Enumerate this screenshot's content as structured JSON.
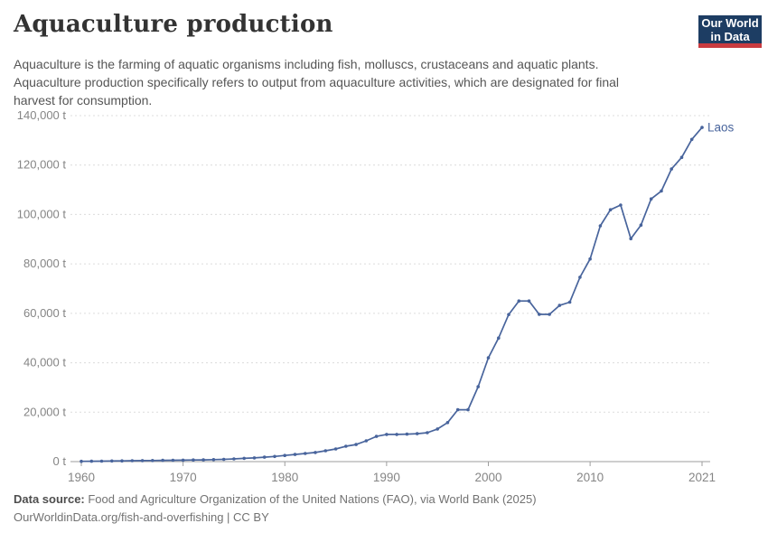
{
  "header": {
    "title": "Aquaculture production",
    "subtitle_lines": [
      "Aquaculture is the farming of aquatic organisms including fish, molluscs, crustaceans and aquatic plants.",
      "Aquaculture production specifically refers to output from aquaculture activities, which are designated for final",
      "harvest for consumption."
    ],
    "logo": {
      "line1": "Our World",
      "line2": "in Data",
      "bg_color": "#1d3d63",
      "accent_color": "#c93b40"
    }
  },
  "chart_data": {
    "type": "line",
    "title": "Aquaculture production",
    "unit": "t",
    "entity_label": "Laos",
    "x": [
      1960,
      1961,
      1962,
      1963,
      1964,
      1965,
      1966,
      1967,
      1968,
      1969,
      1970,
      1971,
      1972,
      1973,
      1974,
      1975,
      1976,
      1977,
      1978,
      1979,
      1980,
      1981,
      1982,
      1983,
      1984,
      1985,
      1986,
      1987,
      1988,
      1989,
      1990,
      1991,
      1992,
      1993,
      1994,
      1995,
      1996,
      1997,
      1998,
      1999,
      2000,
      2001,
      2002,
      2003,
      2004,
      2005,
      2006,
      2007,
      2008,
      2009,
      2010,
      2011,
      2012,
      2013,
      2014,
      2015,
      2016,
      2017,
      2018,
      2019,
      2020,
      2021
    ],
    "series": [
      {
        "name": "Laos",
        "color": "#48649c",
        "values": [
          100,
          150,
          200,
          250,
          300,
          350,
          400,
          450,
          500,
          550,
          600,
          650,
          700,
          800,
          900,
          1100,
          1300,
          1500,
          1800,
          2100,
          2500,
          2900,
          3300,
          3700,
          4400,
          5100,
          6200,
          6900,
          8400,
          10200,
          11000,
          11000,
          11100,
          11300,
          11700,
          13200,
          15800,
          21000,
          21000,
          30300,
          42000,
          50000,
          59500,
          65000,
          65000,
          59600,
          59600,
          63200,
          64500,
          74600,
          82000,
          95400,
          101900,
          103800,
          90200,
          95700,
          106300,
          109500,
          118400,
          123100,
          130400,
          135200
        ]
      }
    ],
    "xlim": [
      1960,
      2021
    ],
    "ylim": [
      0,
      140000
    ],
    "xticks": [
      1960,
      1970,
      1980,
      1990,
      2000,
      2010,
      2021
    ],
    "yticks": [
      0,
      20000,
      40000,
      60000,
      80000,
      100000,
      120000,
      140000
    ],
    "ytick_suffix": " t",
    "grid": "horizontal-dashed",
    "legend_position": "end-of-line",
    "colors": {
      "gridline": "#dcdcdc",
      "axis_line": "#9e9e9e",
      "tick_text": "#858585"
    }
  },
  "footer": {
    "source_label": "Data source:",
    "source_text": " Food and Agriculture Organization of the United Nations (FAO), via World Bank (2025)",
    "link_line": "OurWorldinData.org/fish-and-overfishing | CC BY"
  }
}
